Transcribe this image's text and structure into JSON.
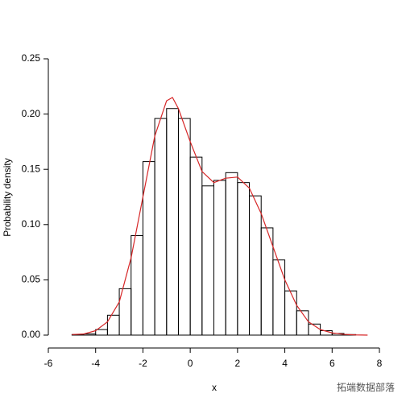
{
  "chart_data": {
    "type": "histogram",
    "xlabel": "x",
    "ylabel": "Probability density",
    "bins": [
      -5.5,
      -5,
      -4.5,
      -4,
      -3.5,
      -3,
      -2.5,
      -2,
      -1.5,
      -1,
      -0.5,
      0,
      0.5,
      1,
      1.5,
      2,
      2.5,
      3,
      3.5,
      4,
      4.5,
      5,
      5.5,
      6,
      6.5,
      7,
      7.5
    ],
    "values": [
      0,
      0.0005,
      0.001,
      0.005,
      0.018,
      0.042,
      0.09,
      0.157,
      0.196,
      0.205,
      0.196,
      0.161,
      0.135,
      0.14,
      0.147,
      0.138,
      0.126,
      0.097,
      0.068,
      0.04,
      0.022,
      0.01,
      0.004,
      0.0015,
      0.0005,
      0
    ],
    "color": "#000000",
    "curve": {
      "x": [
        -5,
        -4.5,
        -4,
        -3.5,
        -3,
        -2.5,
        -2,
        -1.5,
        -1,
        -0.75,
        -0.5,
        0,
        0.5,
        1,
        1.5,
        2,
        2.5,
        3,
        3.5,
        4,
        4.5,
        5,
        5.5,
        6,
        6.5,
        7,
        7.5
      ],
      "values": [
        0.0005,
        0.001,
        0.004,
        0.012,
        0.03,
        0.07,
        0.125,
        0.18,
        0.212,
        0.215,
        0.205,
        0.175,
        0.148,
        0.138,
        0.142,
        0.143,
        0.133,
        0.11,
        0.08,
        0.05,
        0.027,
        0.012,
        0.005,
        0.002,
        0.0007,
        0.0002,
        0
      ],
      "color": "#d62728"
    },
    "xlim": [
      -6,
      8
    ],
    "xticks": [
      -6,
      -4,
      -2,
      0,
      2,
      4,
      6,
      8
    ],
    "ylim": [
      0,
      0.25
    ],
    "yticks": [
      {
        "value": 0,
        "label": "0.00"
      },
      0.05,
      {
        "value": 0.1,
        "label": "0.10"
      },
      0.15,
      {
        "value": 0.2,
        "label": "0.20"
      },
      0.25
    ],
    "watermark": "拓端数据部落"
  }
}
